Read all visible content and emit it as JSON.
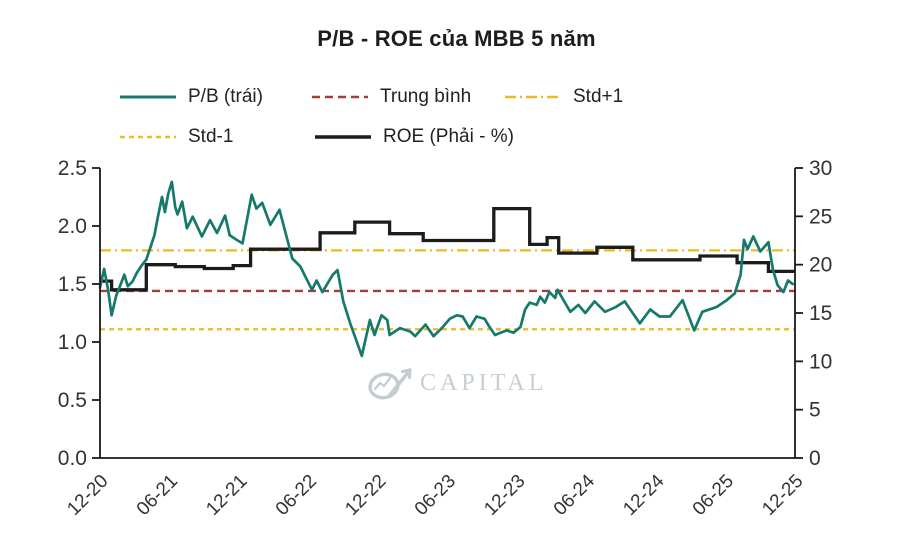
{
  "title": "P/B - ROE của MBB 5 năm",
  "watermark": {
    "text": "CAPITAL",
    "icon": "alpha-arrow-logo",
    "color": "#c6cfd4"
  },
  "colors": {
    "pb": "#15796c",
    "mean": "#a33e3a",
    "std": "#e9bb24",
    "roe": "#1c1c1c",
    "axis": "#1a1a1a",
    "tick_text": "#333333"
  },
  "legend": {
    "items": [
      {
        "id": "pb",
        "label": "P/B (trái)",
        "dash": "",
        "width": 3
      },
      {
        "id": "mean",
        "label": "Trung bình",
        "dash": "8 5",
        "width": 2.6
      },
      {
        "id": "stdp",
        "label": "Std+1",
        "dash": "11 4 2 4",
        "width": 2.6
      },
      {
        "id": "stdm",
        "label": "Std-1",
        "dash": "5 4",
        "width": 2.6
      },
      {
        "id": "roe",
        "label": "ROE (Phải - %)",
        "dash": "",
        "width": 3.4
      }
    ]
  },
  "chart_data": {
    "type": "line",
    "title": "P/B - ROE của MBB 5 năm",
    "x_unit": "months since Dec-2020",
    "x_max_months": 60,
    "x_tick_labels": [
      "12-20",
      "06-21",
      "12-21",
      "06-22",
      "12-22",
      "06-23",
      "12-23",
      "06-24",
      "12-24",
      "06-25",
      "12-25"
    ],
    "left_axis": {
      "min": 0,
      "max": 2.5,
      "tick_labels": [
        "0.0",
        "0.5",
        "1.0",
        "1.5",
        "2.0",
        "2.5"
      ]
    },
    "right_axis": {
      "min": 0,
      "max": 30,
      "tick_labels": [
        "0",
        "5",
        "10",
        "15",
        "20",
        "25",
        "30"
      ]
    },
    "reference_lines": {
      "mean": 1.44,
      "std_plus_1": 1.79,
      "std_minus_1": 1.11
    },
    "grid": false,
    "legend_position": "top",
    "series": [
      {
        "name": "P/B (trái)",
        "axis": "left",
        "style": "line",
        "color_key": "pb",
        "points": [
          [
            0,
            1.47
          ],
          [
            0.35,
            1.63
          ],
          [
            0.7,
            1.45
          ],
          [
            1.0,
            1.23
          ],
          [
            1.4,
            1.4
          ],
          [
            1.8,
            1.5
          ],
          [
            2.1,
            1.58
          ],
          [
            2.4,
            1.48
          ],
          [
            2.8,
            1.52
          ],
          [
            3.2,
            1.6
          ],
          [
            3.6,
            1.66
          ],
          [
            4.0,
            1.71
          ],
          [
            4.3,
            1.8
          ],
          [
            4.7,
            1.92
          ],
          [
            5.0,
            2.08
          ],
          [
            5.35,
            2.25
          ],
          [
            5.6,
            2.12
          ],
          [
            5.9,
            2.28
          ],
          [
            6.2,
            2.38
          ],
          [
            6.5,
            2.16
          ],
          [
            6.7,
            2.1
          ],
          [
            7.1,
            2.21
          ],
          [
            7.5,
            1.98
          ],
          [
            8.0,
            2.08
          ],
          [
            8.8,
            1.91
          ],
          [
            9.5,
            2.05
          ],
          [
            10.1,
            1.94
          ],
          [
            10.8,
            2.09
          ],
          [
            11.2,
            1.92
          ],
          [
            11.8,
            1.88
          ],
          [
            12.3,
            1.85
          ],
          [
            13.1,
            2.27
          ],
          [
            13.5,
            2.15
          ],
          [
            14.0,
            2.2
          ],
          [
            14.7,
            2.01
          ],
          [
            15.5,
            2.14
          ],
          [
            16.6,
            1.72
          ],
          [
            17.3,
            1.65
          ],
          [
            18.3,
            1.45
          ],
          [
            18.7,
            1.53
          ],
          [
            19.2,
            1.43
          ],
          [
            20.1,
            1.58
          ],
          [
            20.5,
            1.62
          ],
          [
            21.0,
            1.35
          ],
          [
            21.6,
            1.16
          ],
          [
            22.0,
            1.05
          ],
          [
            22.6,
            0.88
          ],
          [
            23.3,
            1.19
          ],
          [
            23.7,
            1.06
          ],
          [
            24.3,
            1.23
          ],
          [
            24.8,
            1.19
          ],
          [
            25.0,
            1.06
          ],
          [
            25.9,
            1.12
          ],
          [
            26.8,
            1.09
          ],
          [
            27.2,
            1.05
          ],
          [
            28.1,
            1.15
          ],
          [
            28.8,
            1.05
          ],
          [
            29.6,
            1.13
          ],
          [
            30.2,
            1.2
          ],
          [
            30.8,
            1.23
          ],
          [
            31.3,
            1.22
          ],
          [
            31.9,
            1.12
          ],
          [
            32.5,
            1.22
          ],
          [
            33.2,
            1.2
          ],
          [
            33.5,
            1.15
          ],
          [
            34.1,
            1.06
          ],
          [
            35.1,
            1.1
          ],
          [
            35.7,
            1.08
          ],
          [
            36.3,
            1.13
          ],
          [
            36.7,
            1.28
          ],
          [
            37.1,
            1.34
          ],
          [
            37.7,
            1.32
          ],
          [
            38.0,
            1.39
          ],
          [
            38.4,
            1.34
          ],
          [
            38.8,
            1.43
          ],
          [
            39.3,
            1.38
          ],
          [
            39.5,
            1.45
          ],
          [
            40.6,
            1.26
          ],
          [
            41.3,
            1.32
          ],
          [
            41.9,
            1.25
          ],
          [
            42.7,
            1.35
          ],
          [
            43.6,
            1.26
          ],
          [
            44.5,
            1.3
          ],
          [
            45.3,
            1.35
          ],
          [
            46.6,
            1.16
          ],
          [
            47.5,
            1.28
          ],
          [
            48.3,
            1.22
          ],
          [
            49.2,
            1.22
          ],
          [
            50.3,
            1.36
          ],
          [
            51.3,
            1.1
          ],
          [
            52.0,
            1.26
          ],
          [
            53.2,
            1.3
          ],
          [
            54.1,
            1.36
          ],
          [
            54.8,
            1.42
          ],
          [
            55.3,
            1.58
          ],
          [
            55.6,
            1.88
          ],
          [
            55.9,
            1.8
          ],
          [
            56.4,
            1.91
          ],
          [
            57.0,
            1.78
          ],
          [
            57.7,
            1.86
          ],
          [
            58.1,
            1.62
          ],
          [
            58.5,
            1.49
          ],
          [
            59.0,
            1.43
          ],
          [
            59.4,
            1.53
          ],
          [
            59.8,
            1.5
          ]
        ]
      },
      {
        "name": "ROE (Phải - %)",
        "axis": "right",
        "style": "step",
        "color_key": "roe",
        "points": [
          [
            0,
            18.3
          ],
          [
            1.0,
            17.4
          ],
          [
            4.0,
            20.0
          ],
          [
            6.5,
            19.8
          ],
          [
            9.0,
            19.6
          ],
          [
            11.5,
            19.9
          ],
          [
            13.0,
            21.6
          ],
          [
            19.0,
            23.3
          ],
          [
            22.0,
            24.4
          ],
          [
            25.0,
            23.2
          ],
          [
            27.9,
            22.5
          ],
          [
            34.0,
            25.8
          ],
          [
            37.1,
            22.1
          ],
          [
            38.6,
            22.8
          ],
          [
            39.6,
            21.2
          ],
          [
            42.9,
            21.8
          ],
          [
            46.0,
            20.5
          ],
          [
            51.8,
            20.9
          ],
          [
            55.0,
            20.2
          ],
          [
            57.7,
            19.3
          ]
        ]
      }
    ]
  }
}
